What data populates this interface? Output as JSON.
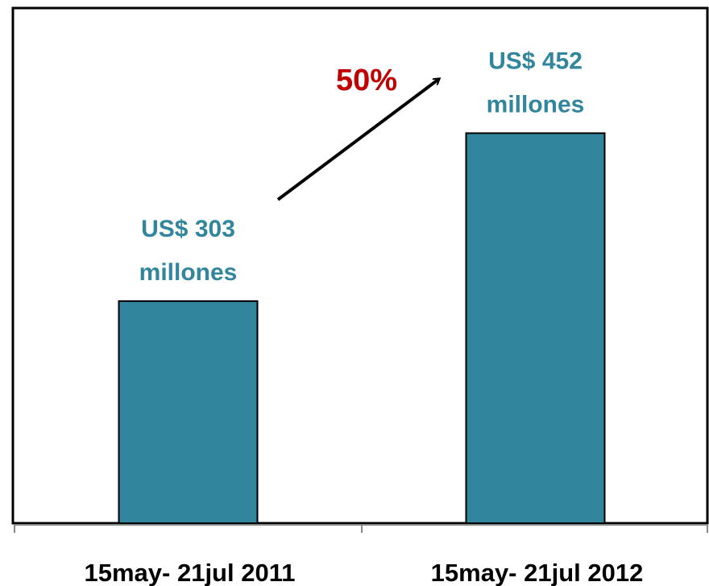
{
  "chart_data": {
    "type": "bar",
    "categories": [
      "15may- 21jul 2011",
      "15may- 21jul 2012"
    ],
    "values": [
      303,
      452
    ],
    "value_labels": [
      [
        "US$ 303",
        "millones"
      ],
      [
        "US$ 452",
        "millones"
      ]
    ],
    "color": "#31859c",
    "label_color": "#31859c",
    "ylim": [
      106,
      563
    ],
    "annotations": [
      {
        "text": "50%",
        "color": "#c00000"
      }
    ]
  }
}
